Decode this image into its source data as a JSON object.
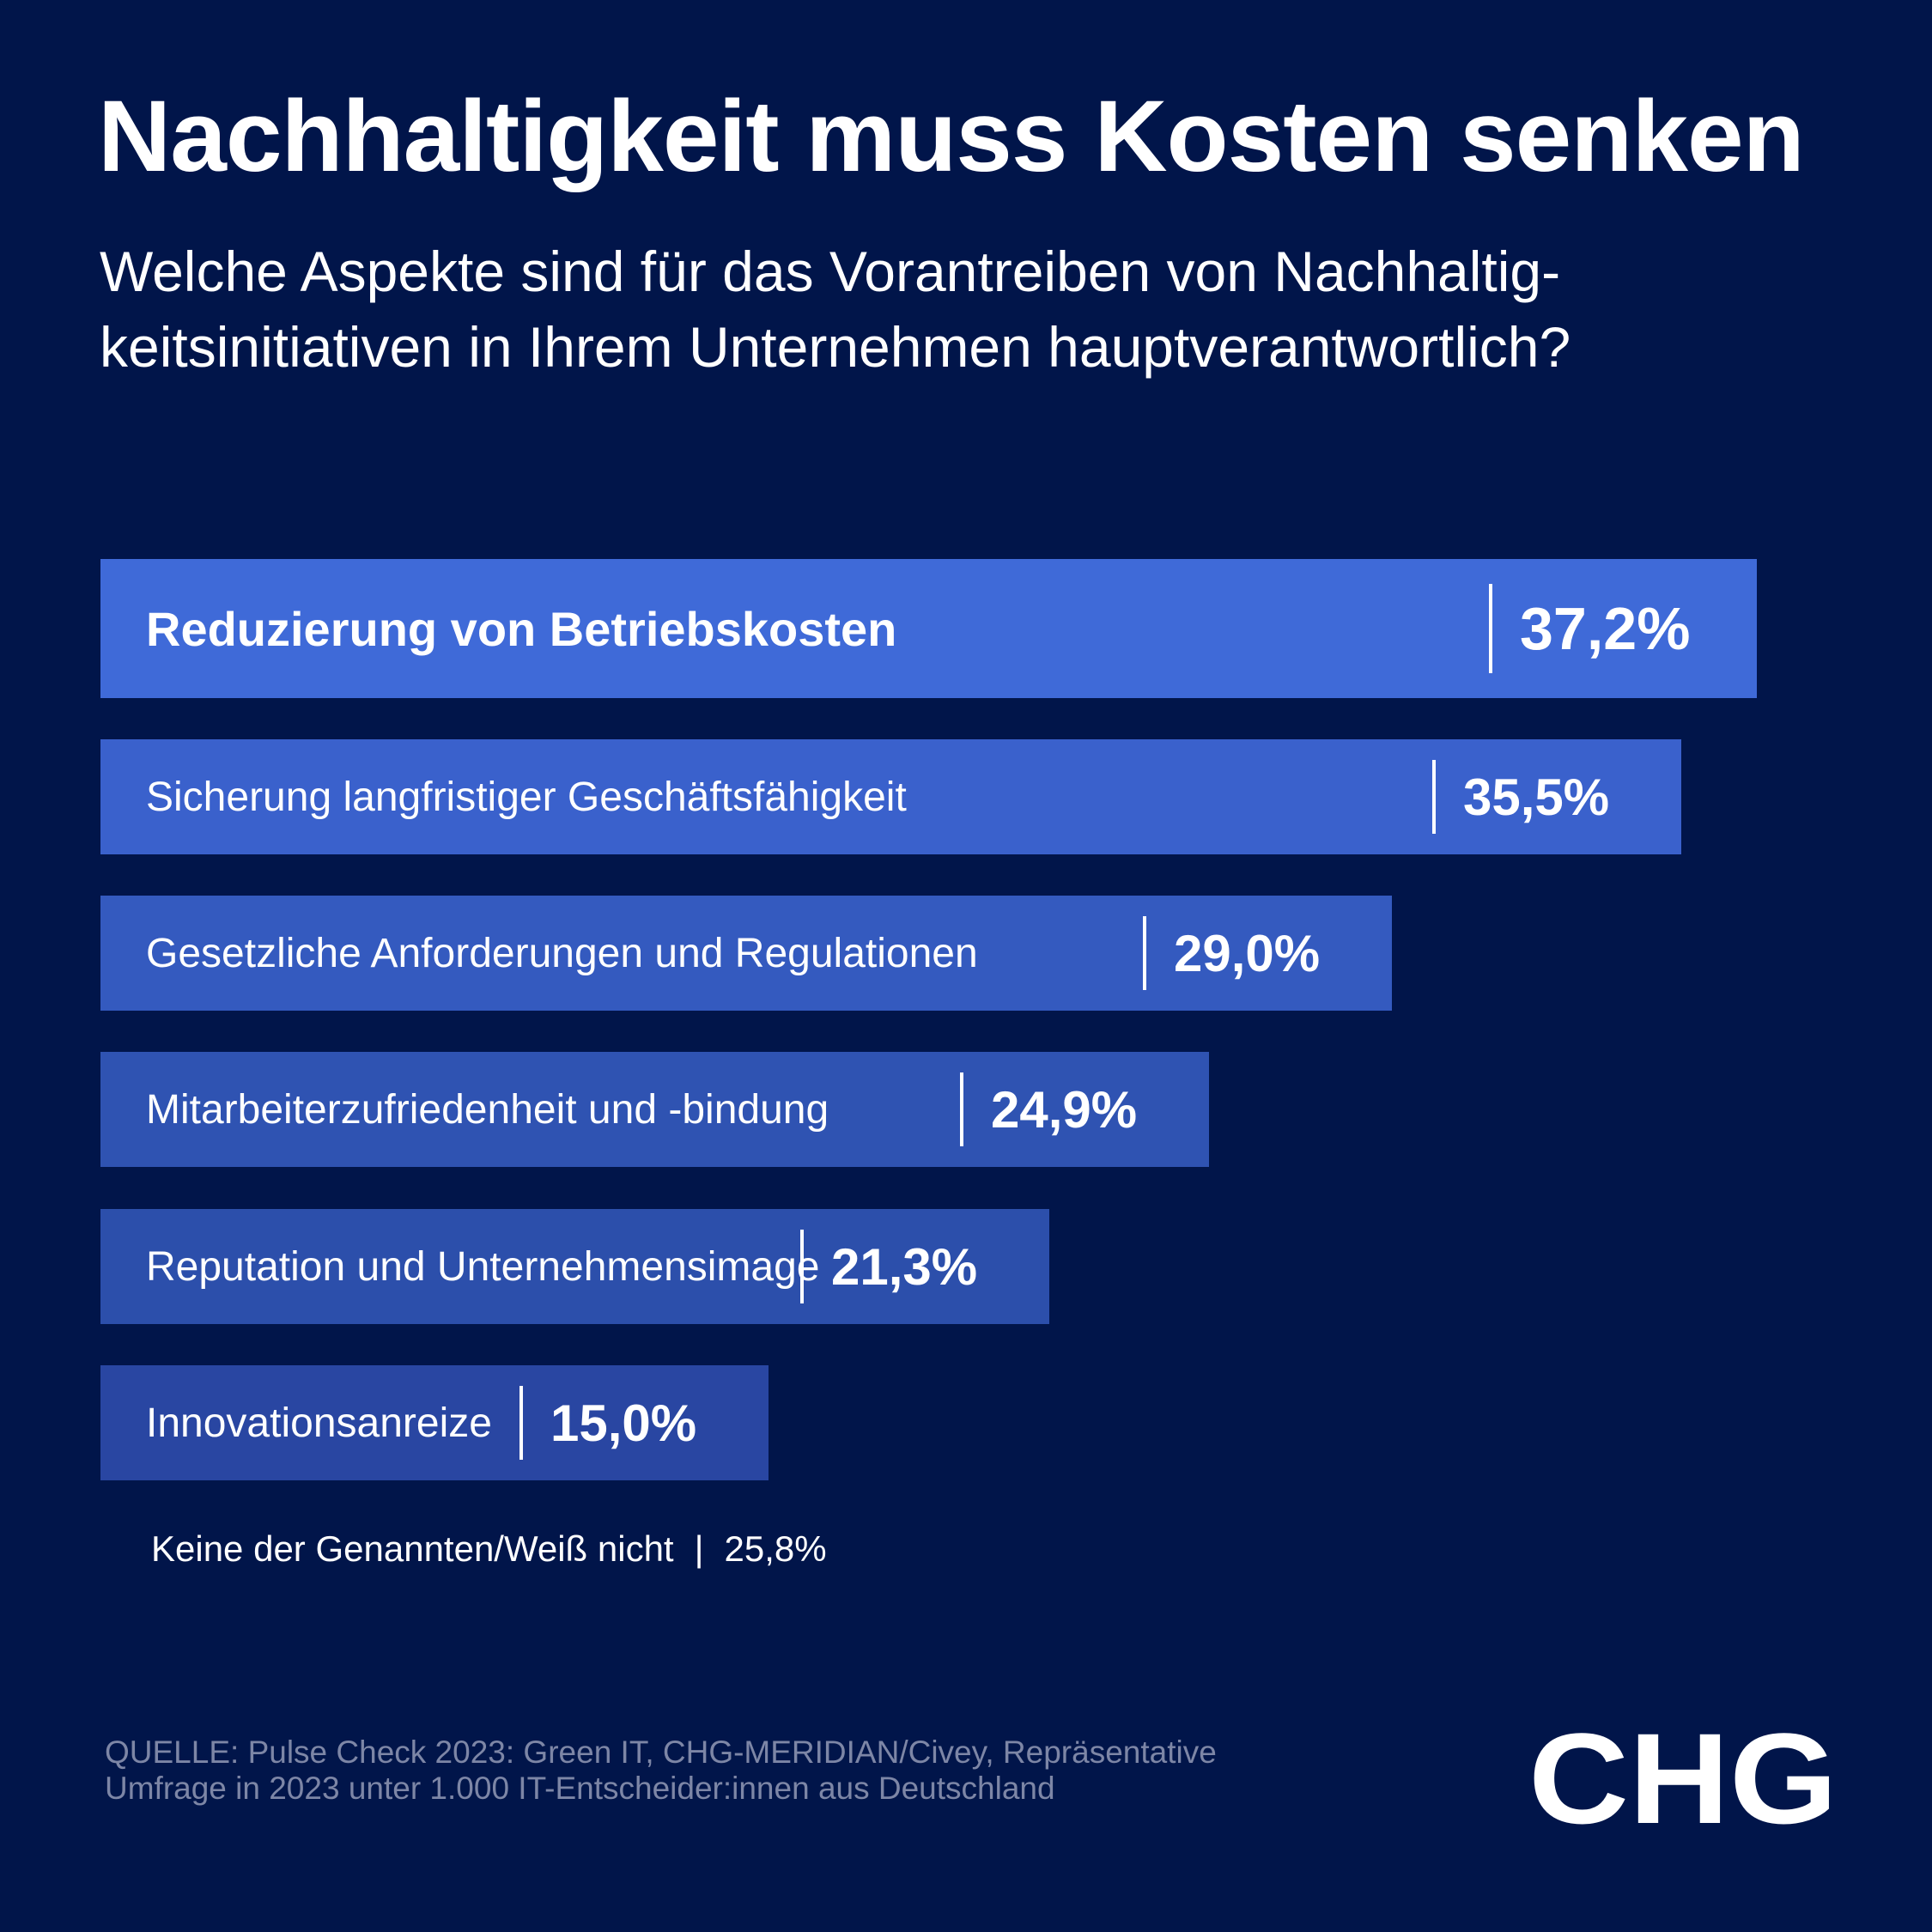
{
  "header": {
    "title": "Nachhaltigkeit muss Kosten senken",
    "subtitle_lines": [
      "Welche Aspekte sind für das Vorantreiben von Nachhaltig-",
      "keitsinitiativen in Ihrem Unternehmen hauptverantwortlich?"
    ]
  },
  "chart_data": {
    "type": "bar",
    "orientation": "horizontal",
    "title": "Nachhaltigkeit muss Kosten senken",
    "subtitle": "Welche Aspekte sind für das Vorantreiben von Nachhaltigkeitsinitiativen in Ihrem Unternehmen hauptverantwortlich?",
    "categories": [
      "Reduzierung von Betriebskosten",
      "Sicherung langfristiger Geschäftsfähigkeit",
      "Gesetzliche Anforderungen und Regulationen",
      "Mitarbeiterzufriedenheit und -bindung",
      "Reputation und Unternehmensimage",
      "Innovationsanreize"
    ],
    "values": [
      37.2,
      35.5,
      29.0,
      24.9,
      21.3,
      15.0
    ],
    "value_labels": [
      "37,2%",
      "35,5%",
      "29,0%",
      "24,9%",
      "21,3%",
      "15,0%"
    ],
    "bar_colors": [
      "#3f6ad8",
      "#3a61cc",
      "#345abf",
      "#2f53b2",
      "#2c4fab",
      "#2946a2"
    ],
    "grid": false,
    "legend": "none",
    "extra_answer": {
      "label": "Keine der Genannten/Weiß nicht",
      "separator": "|",
      "value_label": "25,8%"
    }
  },
  "footer": {
    "source_lines": [
      "QUELLE: Pulse Check 2023: Green IT, CHG-MERIDIAN/Civey, Repräsentative",
      "Umfrage in 2023 unter 1.000 IT-Entscheider:innen aus Deutschland"
    ],
    "logo_text": "CHG"
  },
  "colors": {
    "background": "#01154a",
    "text": "#ffffff",
    "source_text": "#7d86a6"
  }
}
